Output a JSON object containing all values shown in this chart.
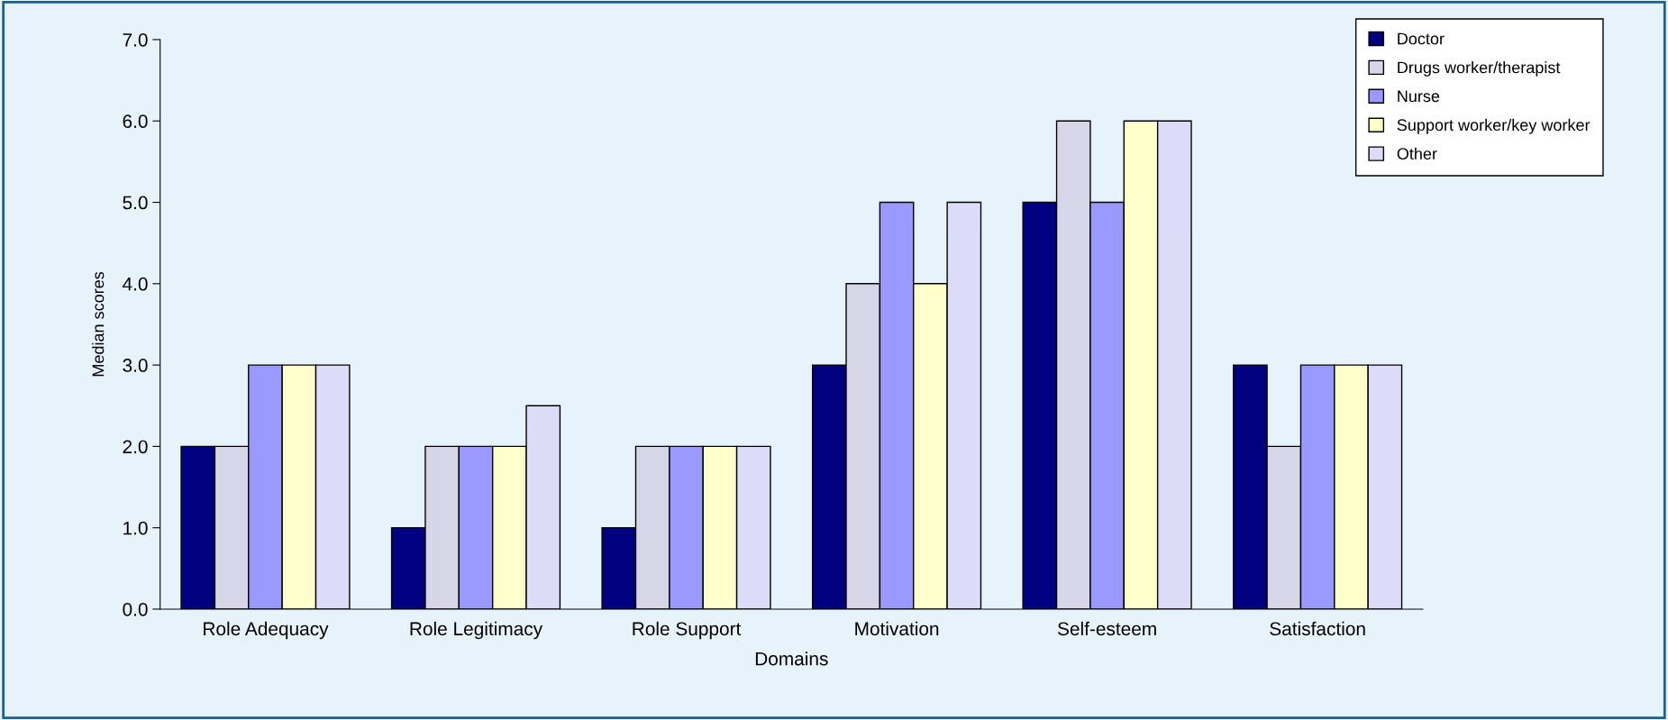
{
  "chart_data": {
    "type": "bar",
    "xlabel": "Domains",
    "ylabel": "Median scores",
    "categories": [
      "Role Adequacy",
      "Role Legitimacy",
      "Role Support",
      "Motivation",
      "Self-esteem",
      "Satisfaction"
    ],
    "series": [
      {
        "name": "Doctor",
        "color": "#000080",
        "values": [
          2,
          1,
          1,
          3,
          5,
          3
        ]
      },
      {
        "name": "Drugs worker/therapist",
        "color": "#d6d6e8",
        "values": [
          2,
          2,
          2,
          4,
          6,
          2
        ]
      },
      {
        "name": "Nurse",
        "color": "#9999ff",
        "values": [
          3,
          2,
          2,
          5,
          5,
          3
        ]
      },
      {
        "name": "Support worker/key worker",
        "color": "#ffffcc",
        "values": [
          3,
          2,
          2,
          4,
          6,
          3
        ]
      },
      {
        "name": "Other",
        "color": "#dcdcf8",
        "values": [
          3,
          2.5,
          2,
          5,
          6,
          3
        ]
      }
    ],
    "ylim": [
      0,
      7
    ],
    "yticks": [
      {
        "value": 0,
        "label": "0.0"
      },
      {
        "value": 1,
        "label": "1.0"
      },
      {
        "value": 2,
        "label": "2.0"
      },
      {
        "value": 3,
        "label": "3.0"
      },
      {
        "value": 4,
        "label": "4.0"
      },
      {
        "value": 5,
        "label": "5.0"
      },
      {
        "value": 6,
        "label": "6.0"
      },
      {
        "value": 7,
        "label": "7.0"
      }
    ],
    "grid": false,
    "legend": "top right"
  }
}
